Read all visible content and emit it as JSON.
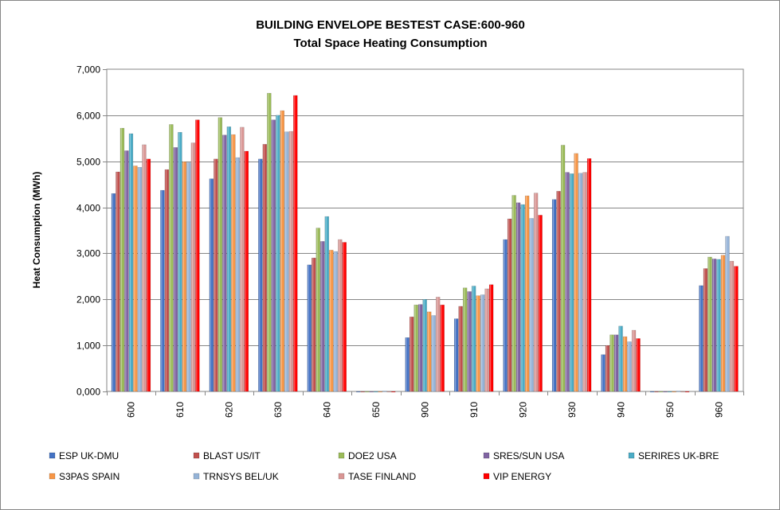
{
  "chart_data": {
    "type": "bar",
    "title": "BUILDING ENVELOPE BESTEST CASE:600-960",
    "subtitle": "Total Space Heating  Consumption",
    "xlabel": "",
    "ylabel": "Heat Consumption (MWh)",
    "ylim": [
      0,
      7000
    ],
    "ytick_labels": [
      "0,000",
      "1,000",
      "2,000",
      "3,000",
      "4,000",
      "5,000",
      "6,000",
      "7,000"
    ],
    "grid": true,
    "legend_position": "bottom",
    "categories": [
      "600",
      "610",
      "620",
      "630",
      "640",
      "650",
      "900",
      "910",
      "920",
      "930",
      "940",
      "950",
      "960"
    ],
    "series": [
      {
        "name": "ESP UK-DMU",
        "color": "#4472C4",
        "values": [
          4300,
          4370,
          4620,
          5050,
          2750,
          0,
          1170,
          1580,
          3300,
          4170,
          800,
          0,
          2300
        ]
      },
      {
        "name": "BLAST US/IT",
        "color": "#C0504D",
        "values": [
          4770,
          4820,
          5050,
          5370,
          2900,
          0,
          1620,
          1850,
          3750,
          4350,
          1000,
          0,
          2670
        ]
      },
      {
        "name": "DOE2 USA",
        "color": "#9BBB59",
        "values": [
          5720,
          5800,
          5950,
          6480,
          3550,
          0,
          1880,
          2250,
          4260,
          5350,
          1230,
          0,
          2920
        ]
      },
      {
        "name": "SRES/SUN USA",
        "color": "#8064A2",
        "values": [
          5230,
          5300,
          5570,
          5900,
          3260,
          0,
          1890,
          2170,
          4100,
          4760,
          1230,
          0,
          2880
        ]
      },
      {
        "name": "SERIRES UK-BRE",
        "color": "#4BACC6",
        "values": [
          5600,
          5630,
          5750,
          6000,
          3800,
          0,
          2000,
          2290,
          4060,
          4730,
          1420,
          0,
          2870
        ]
      },
      {
        "name": "S3PAS SPAIN",
        "color": "#F79646",
        "values": [
          4900,
          4990,
          5580,
          6100,
          3070,
          0,
          1730,
          2080,
          4250,
          5170,
          1190,
          0,
          2960
        ]
      },
      {
        "name": "TRNSYS BEL/UK",
        "color": "#95B3D7",
        "values": [
          4870,
          4970,
          5080,
          5640,
          3040,
          10,
          1650,
          2100,
          3760,
          4740,
          1080,
          10,
          3370
        ]
      },
      {
        "name": "TASE FINLAND",
        "color": "#D99694",
        "values": [
          5360,
          5400,
          5740,
          5650,
          3300,
          0,
          2050,
          2230,
          4310,
          4760,
          1330,
          0,
          2830
        ]
      },
      {
        "name": "VIP ENERGY",
        "color": "#FF0000",
        "values": [
          5050,
          5900,
          5220,
          6430,
          3240,
          0,
          1880,
          2320,
          3830,
          5060,
          1150,
          0,
          2720
        ]
      }
    ]
  }
}
